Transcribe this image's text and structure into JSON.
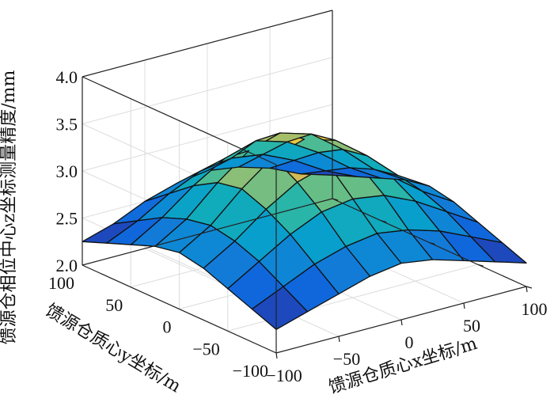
{
  "chart_data": {
    "type": "surface",
    "title": "",
    "xlabel": "馈源仓质心x坐标/m",
    "ylabel": "馈源仓质心y坐标/m",
    "zlabel": "馈源仓相位中心z坐标测量精度/mm",
    "x_ticks": [
      "−100",
      "−50",
      "0",
      "50",
      "100"
    ],
    "y_ticks": [
      "−100",
      "−50",
      "0",
      "50",
      "100"
    ],
    "z_ticks": [
      "2.0",
      "2.5",
      "3.0",
      "3.5",
      "4.0"
    ],
    "xlim": [
      -100,
      100
    ],
    "ylim": [
      -100,
      100
    ],
    "zlim": [
      2.0,
      4.0
    ],
    "grid": true,
    "colormap": "parula",
    "x": [
      -100,
      -75,
      -50,
      -25,
      0,
      25,
      50,
      75,
      100
    ],
    "y": [
      -100,
      -75,
      -50,
      -25,
      0,
      25,
      50,
      75,
      100
    ],
    "z": [
      [
        2.25,
        2.35,
        2.45,
        2.55,
        2.6,
        2.55,
        2.45,
        2.35,
        2.25
      ],
      [
        2.35,
        2.5,
        2.65,
        2.75,
        2.8,
        2.75,
        2.65,
        2.5,
        2.35
      ],
      [
        2.45,
        2.65,
        2.85,
        3.0,
        3.05,
        3.0,
        2.85,
        2.65,
        2.45
      ],
      [
        2.55,
        2.75,
        3.0,
        3.2,
        3.3,
        3.2,
        3.0,
        2.75,
        2.55
      ],
      [
        2.6,
        2.8,
        3.1,
        3.35,
        3.45,
        3.35,
        3.1,
        2.8,
        2.6
      ],
      [
        2.55,
        2.75,
        3.05,
        3.3,
        3.4,
        3.3,
        3.05,
        2.75,
        2.55
      ],
      [
        2.45,
        2.65,
        2.9,
        3.1,
        3.2,
        3.1,
        2.9,
        2.65,
        2.45
      ],
      [
        2.35,
        2.5,
        2.7,
        2.85,
        2.9,
        2.85,
        2.7,
        2.5,
        2.35
      ],
      [
        2.25,
        2.35,
        2.5,
        2.6,
        2.65,
        2.6,
        2.5,
        2.35,
        2.25
      ]
    ]
  }
}
